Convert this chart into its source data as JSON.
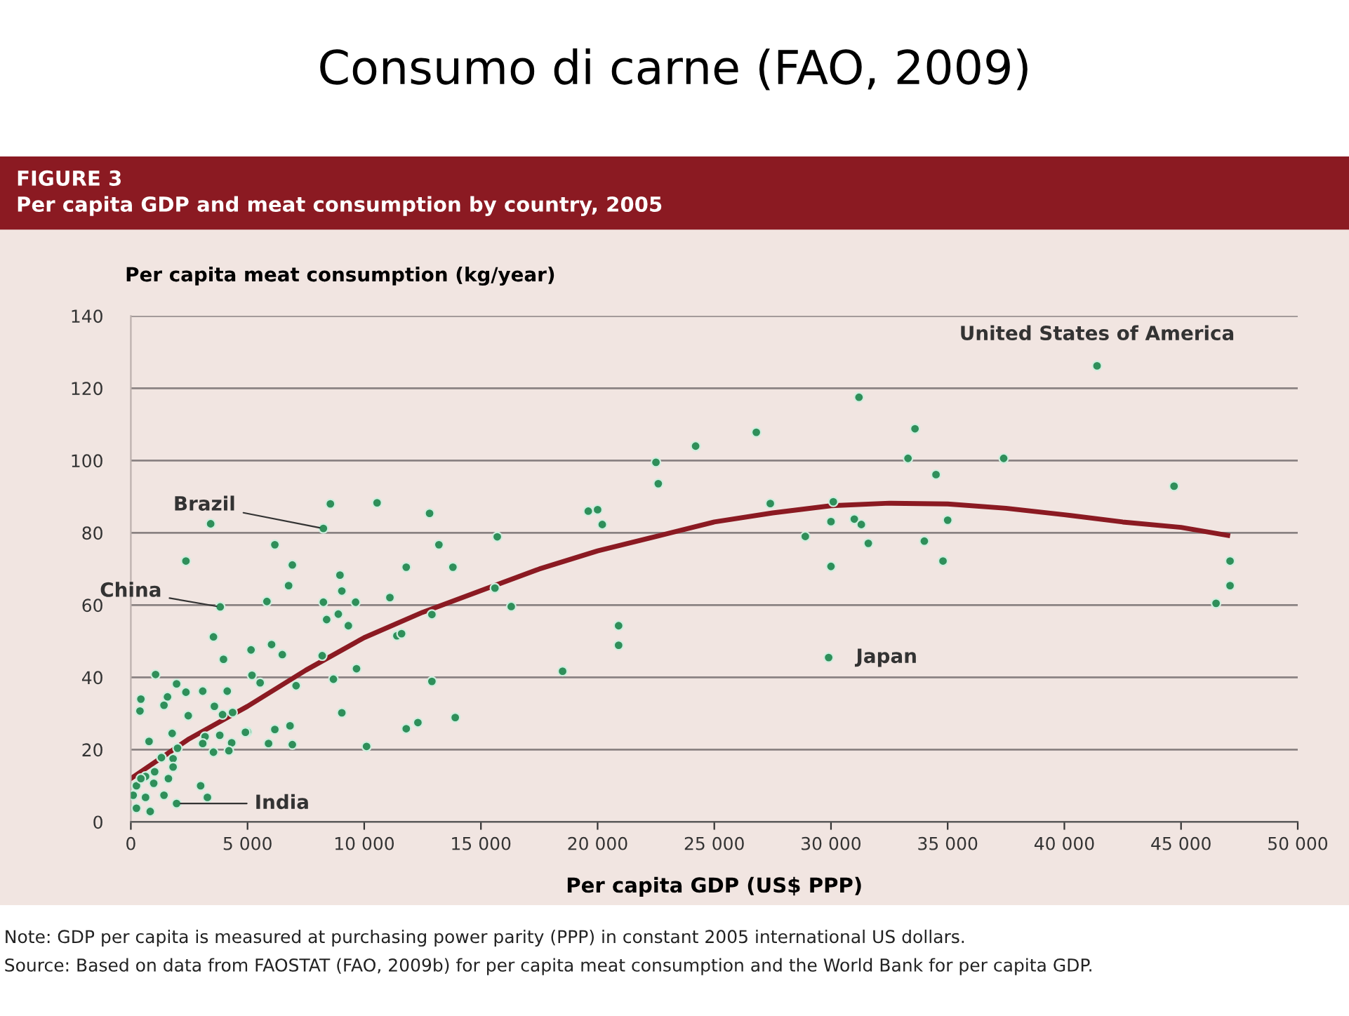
{
  "chart_data": {
    "type": "scatter",
    "title": "Consumo di carne (FAO, 2009)",
    "subtitle": "FIGURE 3\nPer capita GDP and meat consumption by country, 2005",
    "xlabel": "Per capita GDP (US$ PPP)",
    "ylabel": "Per capita meat consumption (kg/year)",
    "xlim": [
      0,
      50000
    ],
    "ylim": [
      0,
      140
    ],
    "xticks": [
      0,
      {
        "value": 5000,
        "label": "5 000"
      },
      {
        "value": 10000,
        "label": "10 000"
      },
      {
        "value": 15000,
        "label": "15 000"
      },
      {
        "value": 20000,
        "label": "20 000"
      },
      {
        "value": 25000,
        "label": "25 000"
      },
      {
        "value": 30000,
        "label": "30 000"
      },
      {
        "value": 35000,
        "label": "35 000"
      },
      {
        "value": 40000,
        "label": "40 000"
      },
      {
        "value": 45000,
        "label": "45 000"
      },
      {
        "value": 50000,
        "label": "50 000"
      }
    ],
    "yticks": [
      0,
      20,
      40,
      60,
      80,
      100,
      120,
      140
    ],
    "grid": "y",
    "legend": false,
    "series": [
      {
        "marker": "circle",
        "color": "#2f8f5a",
        "x": [
          41400,
          33600,
          33300,
          37400,
          34500,
          44700,
          35000,
          34000,
          34800,
          47100,
          47100,
          46500,
          31200,
          26800,
          24200,
          22500,
          22600,
          27400,
          30100,
          19600,
          20000,
          20200,
          30000,
          31000,
          31300,
          31600,
          28900,
          30000,
          15700,
          15600,
          16300,
          20900,
          20900,
          18500,
          29900,
          8550,
          10550,
          12800,
          8250,
          6170,
          13200,
          6920,
          11800,
          13800,
          8960,
          6760,
          9040,
          5830,
          8250,
          9630,
          11100,
          8890,
          8390,
          12900,
          9320,
          11400,
          11600,
          5150,
          6030,
          6490,
          8200,
          9670,
          5190,
          8680,
          12900,
          7080,
          5540,
          9040,
          13900,
          6170,
          6820,
          11800,
          12300,
          5900,
          6920,
          10100,
          4990,
          3420,
          2360,
          3830,
          3540,
          3970,
          1060,
          1960,
          2360,
          1570,
          1420,
          430,
          390,
          3080,
          4130,
          3580,
          2460,
          3930,
          4360,
          4910,
          1770,
          3180,
          3810,
          4320,
          3540,
          4200,
          3080,
          780,
          1810,
          2000,
          1310,
          1020,
          630,
          240,
          980,
          1610,
          100,
          630,
          240,
          830,
          2990,
          3280,
          1960,
          1420,
          1810,
          430
        ],
        "values": [
          126.2,
          108.8,
          100.6,
          100.6,
          96.1,
          92.9,
          83.5,
          77.7,
          72.2,
          72.2,
          65.4,
          60.5,
          117.5,
          107.8,
          104,
          99.5,
          93.6,
          88.1,
          88.6,
          86.0,
          86.4,
          82.3,
          83.1,
          83.8,
          82.3,
          77.1,
          79.0,
          70.7,
          78.9,
          64.7,
          59.6,
          54.3,
          48.9,
          41.7,
          45.5,
          88.0,
          88.3,
          85.4,
          81.2,
          76.7,
          76.7,
          71.1,
          70.5,
          70.5,
          68.3,
          65.4,
          63.9,
          61.0,
          60.8,
          60.8,
          62.1,
          57.5,
          56.0,
          57.4,
          54.3,
          51.5,
          52.1,
          47.6,
          49.1,
          46.3,
          46.0,
          42.4,
          40.6,
          39.5,
          38.9,
          37.7,
          38.5,
          30.2,
          28.9,
          25.6,
          26.6,
          25.8,
          27.5,
          21.7,
          21.4,
          20.9,
          24.9,
          82.5,
          72.2,
          59.5,
          51.2,
          45.0,
          40.8,
          38.2,
          35.9,
          34.6,
          32.3,
          34.0,
          30.7,
          36.2,
          36.2,
          32.0,
          29.4,
          29.7,
          30.3,
          24.8,
          24.5,
          23.6,
          24.0,
          21.9,
          19.3,
          19.7,
          21.7,
          22.3,
          17.5,
          20.4,
          17.8,
          13.9,
          12.6,
          10.0,
          10.7,
          12.0,
          7.4,
          6.8,
          3.8,
          2.9,
          10.0,
          6.8,
          5.1,
          7.4,
          15.2,
          12.0
        ]
      },
      {
        "type": "line",
        "color": "#8b1a22",
        "x": [
          0,
          2500,
          5000,
          7500,
          10000,
          12500,
          15000,
          17500,
          20000,
          22500,
          25000,
          27500,
          30000,
          32500,
          35000,
          37500,
          40000,
          42500,
          45000,
          47000
        ],
        "values": [
          12,
          23,
          32,
          42,
          51,
          58,
          64,
          70,
          75,
          79,
          83,
          85.5,
          87.5,
          88.2,
          88,
          86.8,
          85,
          83,
          81.5,
          79.3
        ]
      }
    ],
    "annotations": [
      "Note: GDP per capita is measured at purchasing power parity (PPP) in constant 2005 international US dollars.",
      "Source: Based on data from FAOSTAT (FAO, 2009b) for per capita meat consumption and the World Bank for per capita GDP.",
      {
        "text": "Brazil",
        "x": 8250,
        "y": 81.2
      },
      {
        "text": "China",
        "x": 3830,
        "y": 59.5
      },
      {
        "text": "India",
        "x": 1960,
        "y": 5.1
      },
      {
        "text": "United States of America",
        "x": 41400,
        "y": 126.2
      },
      {
        "text": "Japan",
        "x": 29900,
        "y": 45.5
      }
    ]
  }
}
